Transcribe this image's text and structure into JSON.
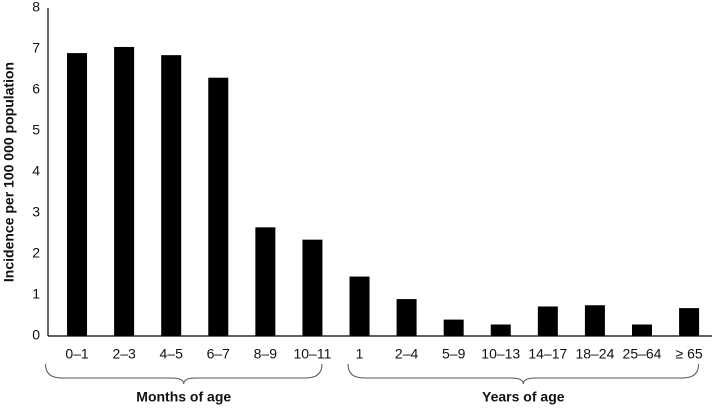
{
  "chart_data": {
    "type": "bar",
    "y_label": "Incidence per 100 000 population",
    "color": "#000000",
    "ylim": [
      0,
      8
    ],
    "yticks": [
      0,
      1,
      2,
      3,
      4,
      5,
      6,
      7,
      8
    ],
    "grid": false,
    "groups": [
      {
        "label": "Months of age",
        "categories": [
          "0–1",
          "2–3",
          "4–5",
          "6–7",
          "8–9",
          "10–11"
        ],
        "values": [
          6.9,
          7.05,
          6.85,
          6.3,
          2.65,
          2.35
        ]
      },
      {
        "label": "Years of age",
        "categories": [
          "1",
          "2–4",
          "5–9",
          "10–13",
          "14–17",
          "18–24",
          "25–64",
          "≥ 65"
        ],
        "values": [
          1.45,
          0.9,
          0.4,
          0.28,
          0.72,
          0.75,
          0.28,
          0.68
        ]
      }
    ]
  }
}
